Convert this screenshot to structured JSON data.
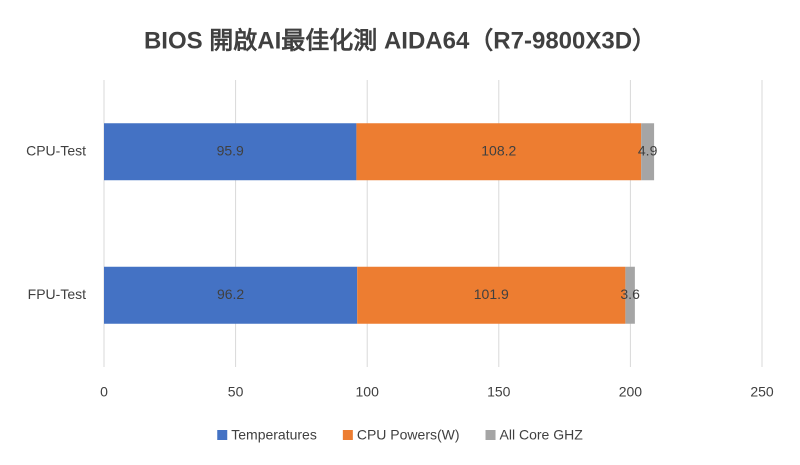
{
  "chart_data": {
    "type": "bar",
    "orientation": "horizontal",
    "stacked": true,
    "title": "BIOS 開啟AI最佳化測 AIDA64（R7-9800X3D）",
    "categories": [
      "CPU-Test",
      "FPU-Test"
    ],
    "series": [
      {
        "name": "Temperatures",
        "color": "#4472c4",
        "values": [
          95.9,
          96.2
        ]
      },
      {
        "name": "CPU Powers(W)",
        "color": "#ed7d31",
        "values": [
          108.2,
          101.9
        ]
      },
      {
        "name": "All Core GHZ",
        "color": "#a5a5a5",
        "values": [
          4.9,
          3.6
        ]
      }
    ],
    "xlim": [
      0,
      250
    ],
    "xticks": [
      0,
      50,
      100,
      150,
      200,
      250
    ],
    "grid": true,
    "legend": "bottom"
  }
}
